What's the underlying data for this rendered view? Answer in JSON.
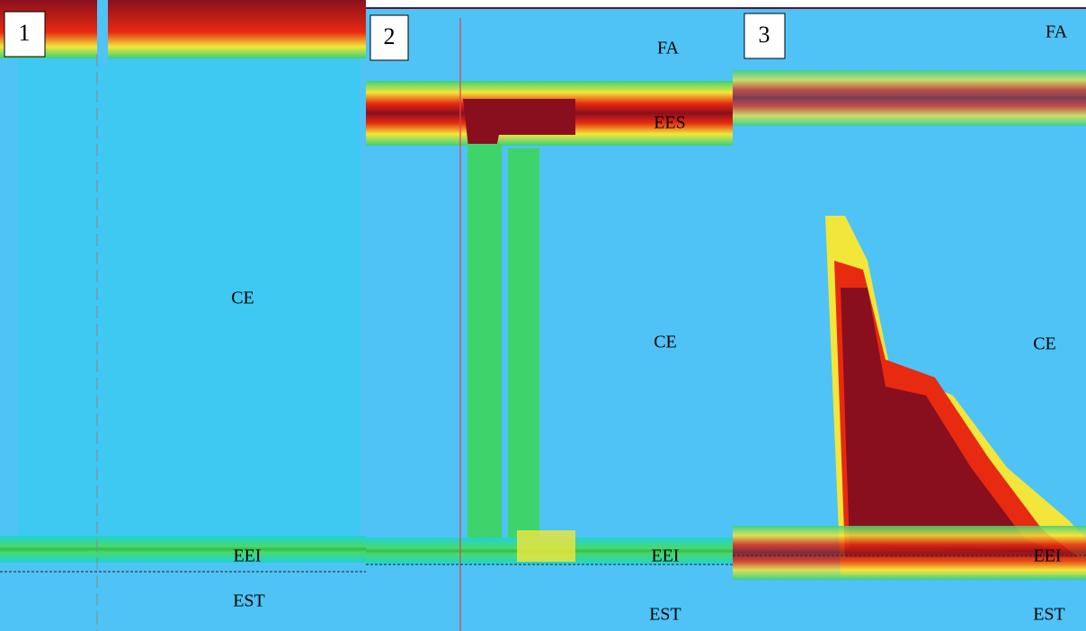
{
  "panels": [
    {
      "number": "1",
      "labels": [
        "CE",
        "EEI",
        "EST"
      ]
    },
    {
      "number": "2",
      "labels": [
        "FA",
        "EES",
        "CE",
        "EEI",
        "EST"
      ]
    },
    {
      "number": "3",
      "labels": [
        "FA",
        "CE",
        "EEI",
        "EST"
      ]
    }
  ]
}
